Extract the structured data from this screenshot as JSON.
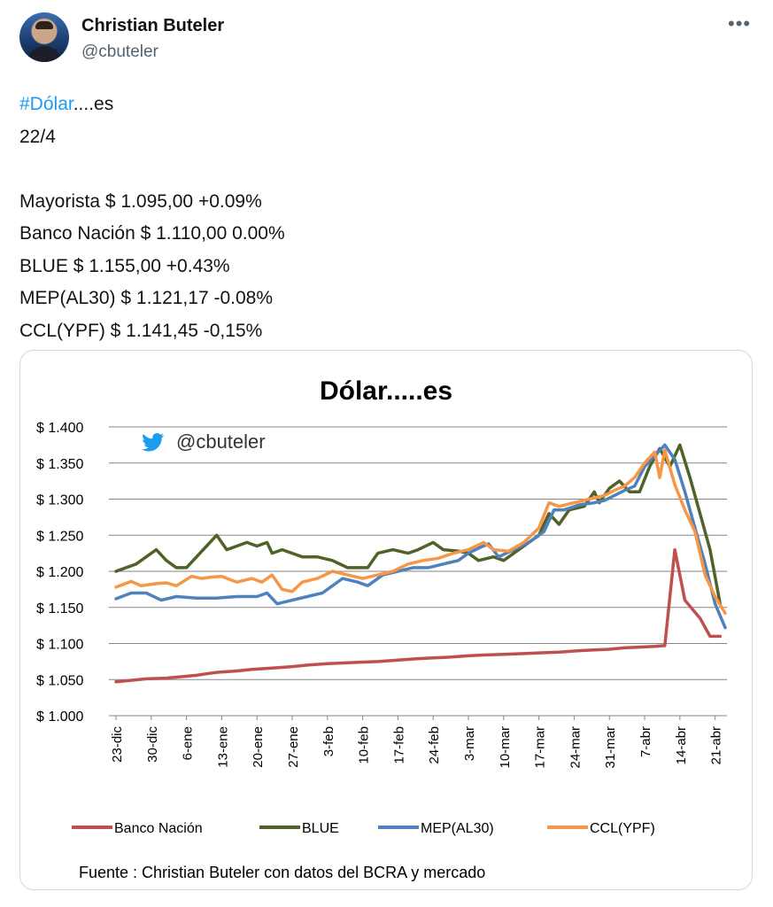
{
  "author": {
    "name": "Christian Buteler",
    "handle": "@cbuteler"
  },
  "icons": {
    "more": "more-horizontal-icon",
    "twitter": "twitter-bird-icon"
  },
  "tweet": {
    "hashtag": "#Dólar",
    "title_suffix": "....es",
    "date": "22/4",
    "lines": [
      "Mayorista $ 1.095,00 +0.09%",
      "Banco Nación $ 1.110,00 0.00%",
      "BLUE $ 1.155,00 +0.43%",
      "MEP(AL30) $ 1.121,17 -0.08%",
      "CCL(YPF) $ 1.141,45 -0,15%"
    ]
  },
  "chart_data": {
    "type": "line",
    "title": "Dólar.....es",
    "watermark": "@cbuteler",
    "source": "Fuente : Christian Buteler con datos del BCRA y mercado",
    "y_ticks": [
      "$ 1.000",
      "$ 1.050",
      "$ 1.100",
      "$ 1.150",
      "$ 1.200",
      "$ 1.250",
      "$ 1.300",
      "$ 1.350",
      "$ 1.400"
    ],
    "ylim": [
      1000,
      1400
    ],
    "x_ticks": [
      "23-dic",
      "30-dic",
      "6-ene",
      "13-ene",
      "20-ene",
      "27-ene",
      "3-feb",
      "10-feb",
      "17-feb",
      "24-feb",
      "3-mar",
      "10-mar",
      "17-mar",
      "24-mar",
      "31-mar",
      "7-abr",
      "14-abr",
      "21-abr"
    ],
    "x_days": [
      0,
      7,
      14,
      21,
      28,
      35,
      42,
      49,
      56,
      63,
      70,
      77,
      84,
      91,
      98,
      105,
      112,
      119
    ],
    "grid": true,
    "legend_position": "bottom",
    "series": [
      {
        "name": "Banco Nación",
        "color": "#c0504d",
        "points": [
          [
            0,
            1047
          ],
          [
            3,
            1049
          ],
          [
            6,
            1051
          ],
          [
            10,
            1052
          ],
          [
            13,
            1054
          ],
          [
            16,
            1056
          ],
          [
            18,
            1058
          ],
          [
            20,
            1060
          ],
          [
            24,
            1062
          ],
          [
            27,
            1064
          ],
          [
            31,
            1066
          ],
          [
            35,
            1068
          ],
          [
            38,
            1070
          ],
          [
            42,
            1072
          ],
          [
            45,
            1073
          ],
          [
            48,
            1074
          ],
          [
            52,
            1075
          ],
          [
            56,
            1077
          ],
          [
            60,
            1079
          ],
          [
            63,
            1080
          ],
          [
            66,
            1081
          ],
          [
            70,
            1083
          ],
          [
            73,
            1084
          ],
          [
            77,
            1085
          ],
          [
            81,
            1086
          ],
          [
            84,
            1087
          ],
          [
            88,
            1088
          ],
          [
            92,
            1090
          ],
          [
            95,
            1091
          ],
          [
            98,
            1092
          ],
          [
            101,
            1094
          ],
          [
            104,
            1095
          ],
          [
            107,
            1096
          ],
          [
            109,
            1097
          ],
          [
            111,
            1230
          ],
          [
            113,
            1160
          ],
          [
            116,
            1135
          ],
          [
            118,
            1110
          ],
          [
            120,
            1110
          ]
        ]
      },
      {
        "name": "BLUE",
        "color": "#4f6228",
        "points": [
          [
            0,
            1200
          ],
          [
            4,
            1210
          ],
          [
            8,
            1230
          ],
          [
            10,
            1215
          ],
          [
            12,
            1205
          ],
          [
            14,
            1205
          ],
          [
            16,
            1220
          ],
          [
            18,
            1235
          ],
          [
            20,
            1250
          ],
          [
            22,
            1230
          ],
          [
            24,
            1235
          ],
          [
            26,
            1240
          ],
          [
            28,
            1235
          ],
          [
            30,
            1240
          ],
          [
            31,
            1225
          ],
          [
            33,
            1230
          ],
          [
            35,
            1225
          ],
          [
            37,
            1220
          ],
          [
            40,
            1220
          ],
          [
            43,
            1215
          ],
          [
            46,
            1205
          ],
          [
            50,
            1205
          ],
          [
            52,
            1225
          ],
          [
            55,
            1230
          ],
          [
            58,
            1225
          ],
          [
            60,
            1230
          ],
          [
            63,
            1240
          ],
          [
            65,
            1230
          ],
          [
            68,
            1228
          ],
          [
            70,
            1225
          ],
          [
            72,
            1215
          ],
          [
            75,
            1220
          ],
          [
            77,
            1215
          ],
          [
            80,
            1230
          ],
          [
            84,
            1250
          ],
          [
            86,
            1280
          ],
          [
            88,
            1265
          ],
          [
            90,
            1285
          ],
          [
            93,
            1290
          ],
          [
            95,
            1310
          ],
          [
            96,
            1295
          ],
          [
            98,
            1315
          ],
          [
            100,
            1325
          ],
          [
            102,
            1310
          ],
          [
            104,
            1310
          ],
          [
            106,
            1345
          ],
          [
            108,
            1370
          ],
          [
            110,
            1345
          ],
          [
            112,
            1375
          ],
          [
            114,
            1330
          ],
          [
            116,
            1280
          ],
          [
            118,
            1230
          ],
          [
            120,
            1155
          ]
        ]
      },
      {
        "name": "MEP(AL30)",
        "color": "#4f81bd",
        "points": [
          [
            0,
            1162
          ],
          [
            3,
            1170
          ],
          [
            6,
            1170
          ],
          [
            9,
            1160
          ],
          [
            12,
            1165
          ],
          [
            16,
            1163
          ],
          [
            20,
            1163
          ],
          [
            24,
            1165
          ],
          [
            28,
            1165
          ],
          [
            30,
            1170
          ],
          [
            32,
            1155
          ],
          [
            35,
            1160
          ],
          [
            38,
            1165
          ],
          [
            41,
            1170
          ],
          [
            43,
            1180
          ],
          [
            45,
            1190
          ],
          [
            48,
            1185
          ],
          [
            50,
            1180
          ],
          [
            53,
            1195
          ],
          [
            56,
            1200
          ],
          [
            59,
            1205
          ],
          [
            62,
            1205
          ],
          [
            65,
            1210
          ],
          [
            68,
            1215
          ],
          [
            70,
            1225
          ],
          [
            72,
            1232
          ],
          [
            74,
            1238
          ],
          [
            76,
            1220
          ],
          [
            79,
            1230
          ],
          [
            82,
            1240
          ],
          [
            85,
            1255
          ],
          [
            87,
            1285
          ],
          [
            89,
            1285
          ],
          [
            92,
            1292
          ],
          [
            95,
            1295
          ],
          [
            97,
            1298
          ],
          [
            99,
            1305
          ],
          [
            101,
            1312
          ],
          [
            103,
            1318
          ],
          [
            105,
            1345
          ],
          [
            107,
            1360
          ],
          [
            109,
            1375
          ],
          [
            111,
            1355
          ],
          [
            113,
            1310
          ],
          [
            115,
            1260
          ],
          [
            117,
            1210
          ],
          [
            119,
            1155
          ],
          [
            121,
            1122
          ]
        ]
      },
      {
        "name": "CCL(YPF)",
        "color": "#f79646",
        "points": [
          [
            0,
            1178
          ],
          [
            3,
            1186
          ],
          [
            5,
            1180
          ],
          [
            8,
            1183
          ],
          [
            10,
            1184
          ],
          [
            12,
            1180
          ],
          [
            15,
            1193
          ],
          [
            17,
            1190
          ],
          [
            19,
            1192
          ],
          [
            21,
            1193
          ],
          [
            24,
            1185
          ],
          [
            27,
            1190
          ],
          [
            29,
            1185
          ],
          [
            31,
            1195
          ],
          [
            33,
            1175
          ],
          [
            35,
            1172
          ],
          [
            37,
            1185
          ],
          [
            40,
            1190
          ],
          [
            43,
            1200
          ],
          [
            46,
            1195
          ],
          [
            49,
            1190
          ],
          [
            52,
            1195
          ],
          [
            55,
            1200
          ],
          [
            58,
            1210
          ],
          [
            61,
            1215
          ],
          [
            64,
            1218
          ],
          [
            67,
            1225
          ],
          [
            70,
            1230
          ],
          [
            73,
            1240
          ],
          [
            75,
            1230
          ],
          [
            78,
            1228
          ],
          [
            81,
            1240
          ],
          [
            84,
            1260
          ],
          [
            86,
            1295
          ],
          [
            88,
            1290
          ],
          [
            91,
            1295
          ],
          [
            94,
            1300
          ],
          [
            97,
            1305
          ],
          [
            99,
            1312
          ],
          [
            101,
            1318
          ],
          [
            103,
            1330
          ],
          [
            105,
            1350
          ],
          [
            107,
            1365
          ],
          [
            108,
            1330
          ],
          [
            109,
            1368
          ],
          [
            111,
            1320
          ],
          [
            113,
            1285
          ],
          [
            115,
            1255
          ],
          [
            117,
            1195
          ],
          [
            119,
            1165
          ],
          [
            121,
            1142
          ]
        ]
      }
    ]
  }
}
